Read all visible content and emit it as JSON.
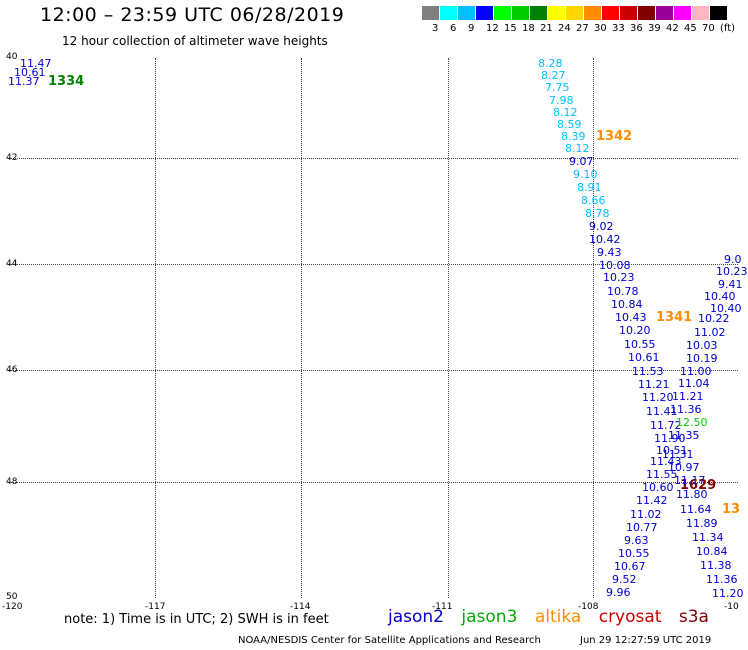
{
  "header": {
    "title": "12:00 – 23:59 UTC 06/28/2019",
    "subtitle": "12 hour collection of altimeter wave heights"
  },
  "colorbar": {
    "colors": [
      "#808080",
      "#00ffff",
      "#00bfff",
      "#0000ff",
      "#00ff00",
      "#00cc00",
      "#008000",
      "#ffff00",
      "#ffd700",
      "#ff8c00",
      "#ff0000",
      "#cc0000",
      "#800000",
      "#990099",
      "#ff00ff",
      "#ffb6c1",
      "#000000"
    ],
    "labels": [
      "3",
      "6",
      "9",
      "12",
      "15",
      "18",
      "21",
      "24",
      "27",
      "30",
      "33",
      "36",
      "39",
      "42",
      "45",
      "70",
      "(ft)"
    ]
  },
  "map": {
    "lat_labels": [
      "40",
      "42",
      "44",
      "46",
      "48",
      "50"
    ],
    "lon_labels": [
      "-120",
      "-117",
      "-114",
      "-111",
      "-108",
      "-10"
    ]
  },
  "tracks": [
    {
      "id": "1334",
      "color": "#008000"
    },
    {
      "id": "1342",
      "color": "#ff8c00"
    },
    {
      "id": "1341",
      "color": "#ff8c00"
    },
    {
      "id": "1629",
      "color": "#800000"
    },
    {
      "id": "13",
      "color": "#ff8c00"
    }
  ],
  "wave_labels": [
    {
      "t": "11.47",
      "c": "#0000cd"
    },
    {
      "t": "10.61",
      "c": "#0000cd"
    },
    {
      "t": "11.37",
      "c": "#0000cd"
    },
    {
      "t": "8.28",
      "c": "#00bfff"
    },
    {
      "t": "8.27",
      "c": "#00bfff"
    },
    {
      "t": "7.75",
      "c": "#00bfff"
    },
    {
      "t": "7.98",
      "c": "#00bfff"
    },
    {
      "t": "8.12",
      "c": "#00bfff"
    },
    {
      "t": "8.59",
      "c": "#00bfff"
    },
    {
      "t": "8.39",
      "c": "#00bfff"
    },
    {
      "t": "8.12",
      "c": "#00bfff"
    },
    {
      "t": "9.07",
      "c": "#0000cd"
    },
    {
      "t": "9.10",
      "c": "#00bfff"
    },
    {
      "t": "8.91",
      "c": "#00bfff"
    },
    {
      "t": "8.66",
      "c": "#00bfff"
    },
    {
      "t": "8.78",
      "c": "#00bfff"
    },
    {
      "t": "9.02",
      "c": "#0000cd"
    },
    {
      "t": "10.42",
      "c": "#0000cd"
    },
    {
      "t": "9.43",
      "c": "#0000cd"
    },
    {
      "t": "10.08",
      "c": "#0000cd"
    },
    {
      "t": "10.23",
      "c": "#0000cd"
    },
    {
      "t": "10.78",
      "c": "#0000cd"
    },
    {
      "t": "10.84",
      "c": "#0000cd"
    },
    {
      "t": "10.43",
      "c": "#0000cd"
    },
    {
      "t": "10.20",
      "c": "#0000cd"
    },
    {
      "t": "10.55",
      "c": "#0000cd"
    },
    {
      "t": "10.61",
      "c": "#0000cd"
    },
    {
      "t": "11.53",
      "c": "#0000cd"
    },
    {
      "t": "11.21",
      "c": "#0000cd"
    },
    {
      "t": "11.20",
      "c": "#0000cd"
    },
    {
      "t": "11.41",
      "c": "#0000cd"
    },
    {
      "t": "11.72",
      "c": "#0000cd"
    },
    {
      "t": "11.90",
      "c": "#0000cd"
    },
    {
      "t": "10.51",
      "c": "#0000cd"
    },
    {
      "t": "11.43",
      "c": "#0000cd"
    },
    {
      "t": "11.55",
      "c": "#0000cd"
    },
    {
      "t": "10.60",
      "c": "#0000cd"
    },
    {
      "t": "11.42",
      "c": "#0000cd"
    },
    {
      "t": "11.02",
      "c": "#0000cd"
    },
    {
      "t": "10.77",
      "c": "#0000cd"
    },
    {
      "t": "9.63",
      "c": "#0000cd"
    },
    {
      "t": "10.55",
      "c": "#0000cd"
    },
    {
      "t": "10.67",
      "c": "#0000cd"
    },
    {
      "t": "9.52",
      "c": "#0000cd"
    },
    {
      "t": "9.96",
      "c": "#0000cd"
    },
    {
      "t": "10.22",
      "c": "#0000cd"
    },
    {
      "t": "11.02",
      "c": "#0000cd"
    },
    {
      "t": "10.03",
      "c": "#0000cd"
    },
    {
      "t": "10.19",
      "c": "#0000cd"
    },
    {
      "t": "11.00",
      "c": "#0000cd"
    },
    {
      "t": "11.04",
      "c": "#0000cd"
    },
    {
      "t": "11.21",
      "c": "#0000cd"
    },
    {
      "t": "11.36",
      "c": "#0000cd"
    },
    {
      "t": "12.50",
      "c": "#00cc00"
    },
    {
      "t": "11.35",
      "c": "#0000cd"
    },
    {
      "t": "11.31",
      "c": "#0000cd"
    },
    {
      "t": "10.97",
      "c": "#0000cd"
    },
    {
      "t": "11.17",
      "c": "#0000cd"
    },
    {
      "t": "11.80",
      "c": "#0000cd"
    },
    {
      "t": "11.64",
      "c": "#0000cd"
    },
    {
      "t": "11.89",
      "c": "#0000cd"
    },
    {
      "t": "11.34",
      "c": "#0000cd"
    },
    {
      "t": "10.84",
      "c": "#0000cd"
    },
    {
      "t": "11.38",
      "c": "#0000cd"
    },
    {
      "t": "11.36",
      "c": "#0000cd"
    },
    {
      "t": "11.20",
      "c": "#0000cd"
    },
    {
      "t": "10.23",
      "c": "#0000cd"
    },
    {
      "t": "9.41",
      "c": "#0000cd"
    },
    {
      "t": "10.40",
      "c": "#0000cd"
    },
    {
      "t": "10.40",
      "c": "#0000cd"
    },
    {
      "t": "9.0",
      "c": "#0000cd"
    }
  ],
  "footer": {
    "note": "note: 1) Time is in UTC; 2) SWH is in feet",
    "legend": [
      {
        "name": "jason2",
        "color": "#0000cd"
      },
      {
        "name": "jason3",
        "color": "#00aa00"
      },
      {
        "name": "altika",
        "color": "#ff8c00"
      },
      {
        "name": "cryosat",
        "color": "#cc0000"
      },
      {
        "name": "s3a",
        "color": "#800000"
      }
    ],
    "credit": "NOAA/NESDIS Center for Satellite Applications and Research",
    "timestamp": "Jun 29 12:27:59 UTC 2019"
  }
}
